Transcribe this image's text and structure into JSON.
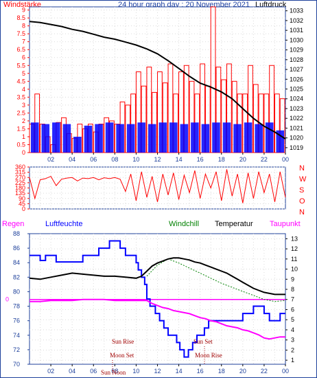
{
  "header": {
    "left_title": "Windstärke",
    "center_title": "24 hour graph day : 20 November 2021",
    "right_title": "Luftdruck"
  },
  "direction_panel": {
    "compass": [
      "N",
      "W",
      "S",
      "O",
      "N"
    ]
  },
  "bottom_header": {
    "regen": "Regen",
    "luftfeuchte": "Luftfeuchte",
    "windchill": "Windchill",
    "temperatur": "Temperatur",
    "taupunkt": "Taupunkt"
  },
  "markers": {
    "sun_rise": "Sun Rise",
    "sun_set": "Sun Set",
    "moon_set": "Moon Set",
    "moon_rise": "Moon Rise",
    "sun_noon": "Sun Noon"
  },
  "colors": {
    "wind_speed": "#ff0000",
    "wind_gust": "#0000ff",
    "pressure": "#000000",
    "direction": "#ff0000",
    "humidity": "#0000ff",
    "temperature": "#000000",
    "dewpoint": "#ff00ff",
    "windchill": "#008000",
    "grid": "#dadada"
  },
  "chart_data": [
    {
      "id": "wind_pressure",
      "type": "bar",
      "title": "24 hour graph day : 20 November 2021",
      "xlabel": "",
      "x_ticks": [
        "02",
        "04",
        "06",
        "08",
        "10",
        "12",
        "14",
        "16",
        "18",
        "20",
        "22",
        "00"
      ],
      "x_range_hours": [
        0,
        24
      ],
      "y_left_label": "Windstärke",
      "y_left_ticks": [
        0,
        0.5,
        1,
        1.5,
        2,
        2.5,
        3,
        3.5,
        4,
        4.5,
        5,
        5.5,
        6,
        6.5,
        7,
        7.5,
        8,
        8.5,
        9
      ],
      "y_left_range": [
        0,
        9.2
      ],
      "y_right_label": "Luftdruck",
      "y_right_ticks": [
        1019,
        1020,
        1021,
        1022,
        1023,
        1024,
        1025,
        1026,
        1027,
        1028,
        1029,
        1030,
        1031,
        1032,
        1033
      ],
      "y_right_range": [
        1018.5,
        1033.4
      ],
      "grid": true,
      "series": [
        {
          "name": "Windstärke",
          "kind": "bars",
          "x": [
            0.0,
            0.5,
            1.0,
            1.5,
            2.0,
            2.5,
            3.0,
            3.5,
            4.0,
            4.5,
            5.0,
            5.5,
            6.0,
            6.5,
            7.0,
            7.5,
            8.0,
            8.5,
            9.0,
            9.5,
            10.0,
            10.5,
            11.0,
            11.5,
            12.0,
            12.5,
            13.0,
            13.5,
            14.0,
            14.5,
            15.0,
            15.5,
            16.0,
            16.5,
            17.0,
            17.5,
            18.0,
            18.5,
            19.0,
            19.5,
            20.0,
            20.5,
            21.0,
            21.5,
            22.0,
            22.5,
            23.0,
            23.5
          ],
          "values": [
            1.8,
            3.7,
            1.8,
            1.0,
            0.5,
            1.9,
            2.2,
            1.2,
            0.9,
            1.8,
            1.5,
            1.8,
            1.3,
            1.8,
            2.2,
            2.0,
            1.8,
            3.2,
            3.0,
            3.7,
            5.1,
            4.2,
            5.4,
            3.8,
            5.1,
            4.4,
            5.6,
            3.7,
            5.1,
            5.5,
            4.5,
            3.7,
            5.6,
            4.2,
            9.2,
            5.4,
            4.6,
            5.6,
            4.5,
            3.7,
            3.7,
            5.5,
            4.3,
            3.7,
            3.7,
            5.5,
            3.7,
            3.4
          ]
        },
        {
          "name": "Wind gust",
          "kind": "bars",
          "x": [
            0.0,
            1.0,
            2.0,
            3.0,
            4.0,
            5.0,
            6.0,
            7.0,
            8.0,
            9.0,
            10.0,
            11.0,
            12.0,
            13.0,
            14.0,
            15.0,
            16.0,
            17.0,
            18.0,
            19.0,
            20.0,
            21.0,
            22.0,
            23.0
          ],
          "values": [
            1.9,
            1.8,
            1.9,
            1.8,
            1.0,
            1.7,
            1.8,
            1.9,
            1.8,
            1.8,
            1.9,
            1.8,
            1.9,
            1.9,
            1.8,
            1.9,
            1.8,
            1.9,
            1.9,
            1.8,
            1.9,
            1.8,
            1.9,
            1.4
          ]
        },
        {
          "name": "Luftdruck",
          "kind": "line",
          "x": [
            0,
            1,
            2,
            3,
            4,
            5,
            6,
            7,
            8,
            9,
            10,
            11,
            12,
            13,
            14,
            15,
            16,
            17,
            18,
            19,
            20,
            21,
            22,
            23,
            24
          ],
          "values": [
            1031.9,
            1031.8,
            1031.6,
            1031.4,
            1031.1,
            1030.9,
            1030.6,
            1030.3,
            1030.1,
            1029.8,
            1029.5,
            1029.1,
            1028.6,
            1027.9,
            1027.1,
            1026.3,
            1025.6,
            1025.2,
            1024.7,
            1024.0,
            1023.0,
            1022.0,
            1021.2,
            1020.6,
            1019.9
          ]
        }
      ]
    },
    {
      "id": "wind_direction",
      "type": "line",
      "y_ticks": [
        0,
        45,
        90,
        135,
        180,
        225,
        270,
        315,
        360
      ],
      "y_range": [
        0,
        360
      ],
      "x_range_hours": [
        0,
        24
      ],
      "grid": true,
      "series": [
        {
          "name": "Wind direction",
          "x": [
            0,
            0.5,
            1,
            1.5,
            2,
            2.5,
            3,
            3.5,
            4,
            4.5,
            5,
            5.5,
            6,
            6.5,
            7,
            7.5,
            8,
            8.5,
            9,
            9.5,
            10,
            10.5,
            11,
            11.5,
            12,
            12.5,
            13,
            13.5,
            14,
            14.5,
            15,
            15.5,
            16,
            16.5,
            17,
            17.5,
            18,
            18.5,
            19,
            19.5,
            20,
            20.5,
            21,
            21.5,
            22,
            22.5,
            23,
            23.5,
            24
          ],
          "values": [
            270,
            90,
            250,
            260,
            280,
            200,
            255,
            265,
            270,
            240,
            265,
            260,
            270,
            250,
            268,
            260,
            270,
            255,
            150,
            300,
            70,
            320,
            100,
            280,
            60,
            300,
            120,
            310,
            80,
            290,
            140,
            330,
            90,
            300,
            180,
            320,
            70,
            340,
            110,
            300,
            50,
            310,
            90,
            320,
            140,
            300,
            60,
            320,
            100
          ]
        }
      ]
    },
    {
      "id": "humidity_temperature",
      "type": "line",
      "x_ticks": [
        "02",
        "04",
        "06",
        "08",
        "10",
        "12",
        "14",
        "16",
        "18",
        "20",
        "22",
        "00"
      ],
      "x_range_hours": [
        0,
        24
      ],
      "y_left_label": "Luftfeuchte",
      "y_left_ticks": [
        70,
        72,
        74,
        76,
        78,
        80,
        82,
        84,
        86,
        88
      ],
      "y_left_range": [
        70,
        88
      ],
      "y_right_label": "Temperatur",
      "y_right_ticks": [
        1,
        2,
        3,
        4,
        5,
        6,
        7,
        8,
        9,
        10,
        11,
        12,
        13
      ],
      "y_right_range": [
        0.6,
        13.5
      ],
      "regen_ticks": [
        "0"
      ],
      "grid": true,
      "series": [
        {
          "name": "Luftfeuchte",
          "axis": "left",
          "x": [
            0,
            0.5,
            1.0,
            1.5,
            2.5,
            3.0,
            4.0,
            5.0,
            6.0,
            6.5,
            7.0,
            7.5,
            8.0,
            8.5,
            9.0,
            9.5,
            10.0,
            10.2,
            10.5,
            10.8,
            11.0,
            11.3,
            11.8,
            12.2,
            12.6,
            13.0,
            13.4,
            13.8,
            14.1,
            14.5,
            14.9,
            15.3,
            15.7,
            16.0,
            16.4,
            16.8,
            17.2,
            17.6,
            18.0,
            18.4,
            18.8,
            19.2,
            19.6,
            20.0,
            20.5,
            21.0,
            21.5,
            22.0,
            22.5,
            23.0,
            23.5,
            24.0
          ],
          "values": [
            85.0,
            85.0,
            84.3,
            85.0,
            84.1,
            84.1,
            84.1,
            85.0,
            85.0,
            86.0,
            86.0,
            87.0,
            87.0,
            86.0,
            85.0,
            85.0,
            84.0,
            83.0,
            82.0,
            81.0,
            79.0,
            78.0,
            77.0,
            76.0,
            75.0,
            74.0,
            74.0,
            73.0,
            72.0,
            71.0,
            72.0,
            73.0,
            74.0,
            74.0,
            75.0,
            76.0,
            76.0,
            76.0,
            76.0,
            76.0,
            76.0,
            76.0,
            76.0,
            77.0,
            77.0,
            78.0,
            78.0,
            77.0,
            76.0,
            76.0,
            77.0,
            77.0
          ]
        },
        {
          "name": "Temperatur",
          "axis": "right",
          "x": [
            0,
            1,
            2,
            3,
            4,
            5,
            6,
            7,
            8,
            9,
            10,
            10.5,
            11,
            11.5,
            12,
            12.5,
            13,
            13.5,
            14,
            14.5,
            15,
            15.5,
            16,
            16.5,
            17,
            17.5,
            18,
            18.5,
            19,
            19.5,
            20,
            20.5,
            21,
            21.5,
            22,
            22.5,
            23,
            23.5,
            24
          ],
          "values": [
            9.1,
            9.0,
            9.2,
            9.4,
            9.6,
            9.5,
            9.4,
            9.3,
            9.3,
            9.2,
            9.1,
            9.3,
            9.8,
            10.3,
            10.6,
            10.8,
            11.0,
            11.1,
            11.1,
            11.0,
            10.9,
            10.7,
            10.6,
            10.4,
            10.2,
            10.0,
            9.8,
            9.6,
            9.3,
            9.0,
            8.7,
            8.4,
            8.1,
            7.9,
            7.7,
            7.6,
            7.5,
            7.5,
            7.5
          ]
        },
        {
          "name": "Taupunkt",
          "axis": "right",
          "x": [
            0,
            1,
            2,
            3,
            4,
            5,
            6,
            7,
            8,
            9,
            10,
            11,
            11.5,
            12,
            12.5,
            13,
            13.5,
            14,
            14.5,
            15,
            15.5,
            16,
            16.5,
            17,
            17.5,
            18,
            18.5,
            19,
            19.5,
            20,
            20.5,
            21,
            21.5,
            22,
            22.5,
            23,
            23.5,
            24
          ],
          "values": [
            6.8,
            6.8,
            6.9,
            6.9,
            6.9,
            7.0,
            7.0,
            7.0,
            6.9,
            6.9,
            6.9,
            6.9,
            6.6,
            6.4,
            6.2,
            6.1,
            5.9,
            5.8,
            5.7,
            5.6,
            5.4,
            5.2,
            5.1,
            4.9,
            4.8,
            4.6,
            4.4,
            4.3,
            4.2,
            4.0,
            3.9,
            3.7,
            3.5,
            3.2,
            3.1,
            3.2,
            3.3,
            3.3
          ]
        },
        {
          "name": "Windchill",
          "axis": "right",
          "x": [
            11,
            12,
            13,
            14,
            15,
            16,
            17,
            18,
            19,
            20,
            21,
            22,
            23,
            24
          ],
          "values": [
            9.3,
            10.4,
            11.0,
            10.6,
            10.1,
            9.6,
            9.1,
            8.6,
            8.2,
            7.8,
            7.4,
            7.0,
            6.8,
            6.9
          ]
        },
        {
          "name": "Regen",
          "axis": "regen",
          "x": [
            0,
            24
          ],
          "values": [
            0,
            0
          ]
        }
      ]
    }
  ]
}
